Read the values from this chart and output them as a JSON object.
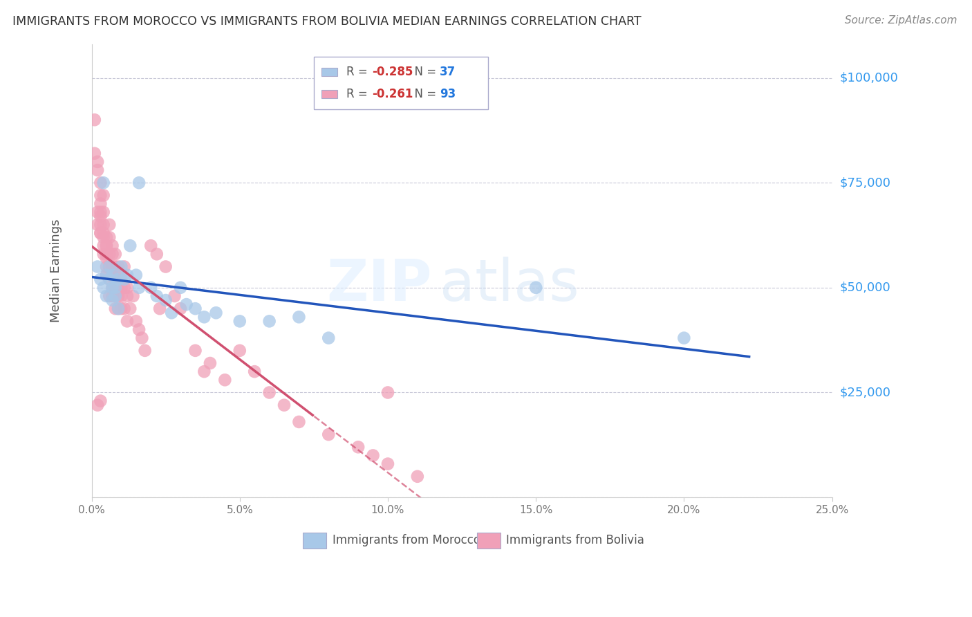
{
  "title": "IMMIGRANTS FROM MOROCCO VS IMMIGRANTS FROM BOLIVIA MEDIAN EARNINGS CORRELATION CHART",
  "source": "Source: ZipAtlas.com",
  "ylabel": "Median Earnings",
  "legend_morocco": "Immigrants from Morocco",
  "legend_bolivia": "Immigrants from Bolivia",
  "R_morocco": -0.285,
  "N_morocco": 37,
  "R_bolivia": -0.261,
  "N_bolivia": 93,
  "color_morocco": "#a8c8e8",
  "color_bolivia": "#f0a0b8",
  "color_morocco_line": "#2255bb",
  "color_bolivia_line": "#d05070",
  "background_color": "#ffffff",
  "grid_color": "#c8c8d8",
  "xlim": [
    0.0,
    0.25
  ],
  "ylim": [
    0,
    108000
  ],
  "yticks": [
    0,
    25000,
    50000,
    75000,
    100000
  ],
  "xticks": [
    0.0,
    0.05,
    0.1,
    0.15,
    0.2,
    0.25
  ],
  "morocco_x": [
    0.002,
    0.003,
    0.004,
    0.004,
    0.005,
    0.005,
    0.006,
    0.006,
    0.007,
    0.007,
    0.007,
    0.008,
    0.008,
    0.009,
    0.009,
    0.01,
    0.011,
    0.012,
    0.013,
    0.015,
    0.016,
    0.016,
    0.02,
    0.022,
    0.025,
    0.027,
    0.03,
    0.032,
    0.035,
    0.038,
    0.042,
    0.05,
    0.06,
    0.07,
    0.08,
    0.15,
    0.2
  ],
  "morocco_y": [
    55000,
    52000,
    50000,
    75000,
    53000,
    48000,
    55000,
    52000,
    53000,
    50000,
    47000,
    50000,
    48000,
    52000,
    45000,
    55000,
    52000,
    53000,
    60000,
    53000,
    50000,
    75000,
    50000,
    48000,
    47000,
    44000,
    50000,
    46000,
    45000,
    43000,
    44000,
    42000,
    42000,
    43000,
    38000,
    50000,
    38000
  ],
  "bolivia_x": [
    0.001,
    0.001,
    0.002,
    0.002,
    0.002,
    0.002,
    0.003,
    0.003,
    0.003,
    0.003,
    0.003,
    0.003,
    0.003,
    0.003,
    0.004,
    0.004,
    0.004,
    0.004,
    0.004,
    0.004,
    0.004,
    0.005,
    0.005,
    0.005,
    0.005,
    0.005,
    0.005,
    0.005,
    0.006,
    0.006,
    0.006,
    0.006,
    0.006,
    0.006,
    0.006,
    0.007,
    0.007,
    0.007,
    0.007,
    0.007,
    0.007,
    0.007,
    0.008,
    0.008,
    0.008,
    0.008,
    0.008,
    0.008,
    0.008,
    0.009,
    0.009,
    0.009,
    0.009,
    0.009,
    0.01,
    0.01,
    0.01,
    0.01,
    0.011,
    0.011,
    0.011,
    0.012,
    0.012,
    0.012,
    0.013,
    0.014,
    0.015,
    0.016,
    0.017,
    0.018,
    0.02,
    0.022,
    0.023,
    0.025,
    0.028,
    0.03,
    0.035,
    0.038,
    0.04,
    0.045,
    0.05,
    0.055,
    0.06,
    0.065,
    0.07,
    0.08,
    0.09,
    0.095,
    0.1,
    0.11,
    0.002,
    0.003,
    0.1
  ],
  "bolivia_y": [
    90000,
    82000,
    80000,
    78000,
    68000,
    65000,
    67000,
    63000,
    75000,
    72000,
    68000,
    65000,
    70000,
    63000,
    65000,
    62000,
    60000,
    68000,
    58000,
    72000,
    63000,
    60000,
    62000,
    58000,
    55000,
    60000,
    57000,
    53000,
    55000,
    58000,
    62000,
    52000,
    55000,
    48000,
    65000,
    60000,
    53000,
    55000,
    50000,
    58000,
    55000,
    48000,
    52000,
    48000,
    55000,
    50000,
    45000,
    52000,
    58000,
    53000,
    50000,
    45000,
    48000,
    55000,
    50000,
    48000,
    52000,
    45000,
    50000,
    55000,
    45000,
    48000,
    42000,
    50000,
    45000,
    48000,
    42000,
    40000,
    38000,
    35000,
    60000,
    58000,
    45000,
    55000,
    48000,
    45000,
    35000,
    30000,
    32000,
    28000,
    35000,
    30000,
    25000,
    22000,
    18000,
    15000,
    12000,
    10000,
    8000,
    5000,
    22000,
    23000,
    25000
  ]
}
